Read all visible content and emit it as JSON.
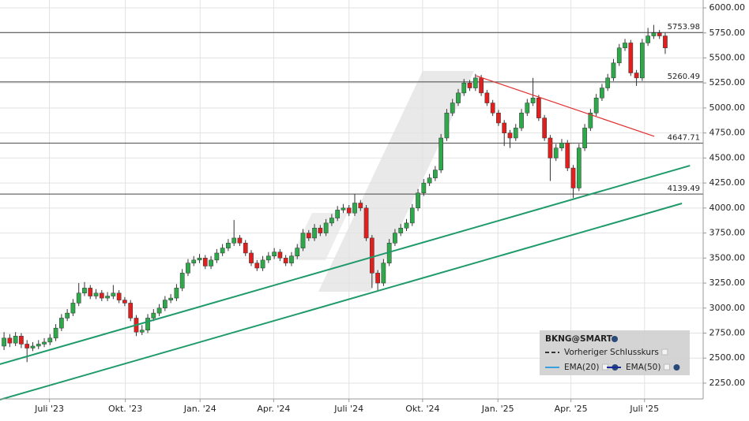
{
  "chart_data": {
    "type": "candlestick",
    "ylim": [
      2092,
      6079
    ],
    "yticks": [
      {
        "value": 2250,
        "label": "2250.00"
      },
      {
        "value": 2500,
        "label": "2500.00"
      },
      {
        "value": 2750,
        "label": "2750.00"
      },
      {
        "value": 3000,
        "label": "3000.00"
      },
      {
        "value": 3250,
        "label": "3250.00"
      },
      {
        "value": 3500,
        "label": "3500.00"
      },
      {
        "value": 3750,
        "label": "3750.00"
      },
      {
        "value": 4000,
        "label": "4000.00"
      },
      {
        "value": 4250,
        "label": "4250.00"
      },
      {
        "value": 4500,
        "label": "4500.00"
      },
      {
        "value": 4750,
        "label": "4750.00"
      },
      {
        "value": 5000,
        "label": "5000.00"
      },
      {
        "value": 5250,
        "label": "5250.00"
      },
      {
        "value": 5500,
        "label": "5500.00"
      },
      {
        "value": 5750,
        "label": "5750.00"
      },
      {
        "value": 6000,
        "label": "6000.00"
      }
    ],
    "xlim": [
      -0.7,
      121.6
    ],
    "xticks": [
      {
        "value": 7.9,
        "label": "Juli '23"
      },
      {
        "value": 21.1,
        "label": "Okt. '23"
      },
      {
        "value": 34.1,
        "label": "Jan. '24"
      },
      {
        "value": 46.9,
        "label": "Apr. '24"
      },
      {
        "value": 60,
        "label": "Juli '24"
      },
      {
        "value": 72.8,
        "label": "Okt. '24"
      },
      {
        "value": 85.9,
        "label": "Jan. '25"
      },
      {
        "value": 98.6,
        "label": "Apr. '25"
      },
      {
        "value": 111.4,
        "label": "Juli '25"
      }
    ],
    "grid": true,
    "up_color": "#2ea84a",
    "down_color": "#e0201e",
    "candles": [
      [
        2620,
        2760,
        2580,
        2700
      ],
      [
        2700,
        2740,
        2610,
        2650
      ],
      [
        2650,
        2760,
        2620,
        2720
      ],
      [
        2720,
        2750,
        2600,
        2640
      ],
      [
        2640,
        2680,
        2460,
        2600
      ],
      [
        2600,
        2660,
        2570,
        2620
      ],
      [
        2620,
        2680,
        2590,
        2640
      ],
      [
        2640,
        2700,
        2610,
        2660
      ],
      [
        2660,
        2740,
        2630,
        2700
      ],
      [
        2700,
        2840,
        2670,
        2800
      ],
      [
        2800,
        2940,
        2770,
        2900
      ],
      [
        2900,
        2990,
        2870,
        2950
      ],
      [
        2950,
        3090,
        2920,
        3050
      ],
      [
        3050,
        3250,
        3020,
        3150
      ],
      [
        3150,
        3260,
        3120,
        3200
      ],
      [
        3200,
        3230,
        3090,
        3120
      ],
      [
        3120,
        3190,
        3090,
        3150
      ],
      [
        3150,
        3180,
        3070,
        3100
      ],
      [
        3100,
        3160,
        3070,
        3120
      ],
      [
        3120,
        3230,
        3090,
        3150
      ],
      [
        3150,
        3180,
        3050,
        3080
      ],
      [
        3080,
        3110,
        3020,
        3050
      ],
      [
        3050,
        3080,
        2870,
        2900
      ],
      [
        2900,
        2930,
        2720,
        2760
      ],
      [
        2760,
        2830,
        2730,
        2780
      ],
      [
        2780,
        2940,
        2750,
        2900
      ],
      [
        2900,
        2990,
        2870,
        2950
      ],
      [
        2950,
        3040,
        2920,
        3000
      ],
      [
        3000,
        3120,
        2970,
        3080
      ],
      [
        3080,
        3140,
        3050,
        3100
      ],
      [
        3100,
        3240,
        3070,
        3200
      ],
      [
        3200,
        3390,
        3170,
        3350
      ],
      [
        3350,
        3490,
        3320,
        3450
      ],
      [
        3450,
        3520,
        3420,
        3480
      ],
      [
        3480,
        3540,
        3450,
        3500
      ],
      [
        3500,
        3530,
        3390,
        3420
      ],
      [
        3420,
        3520,
        3390,
        3480
      ],
      [
        3480,
        3590,
        3450,
        3550
      ],
      [
        3550,
        3640,
        3520,
        3600
      ],
      [
        3600,
        3690,
        3570,
        3650
      ],
      [
        3650,
        3880,
        3620,
        3700
      ],
      [
        3700,
        3730,
        3620,
        3650
      ],
      [
        3650,
        3680,
        3520,
        3550
      ],
      [
        3550,
        3580,
        3420,
        3450
      ],
      [
        3450,
        3480,
        3370,
        3400
      ],
      [
        3400,
        3520,
        3370,
        3480
      ],
      [
        3480,
        3560,
        3450,
        3520
      ],
      [
        3520,
        3600,
        3490,
        3560
      ],
      [
        3560,
        3590,
        3470,
        3500
      ],
      [
        3500,
        3530,
        3420,
        3450
      ],
      [
        3450,
        3560,
        3420,
        3520
      ],
      [
        3520,
        3640,
        3490,
        3600
      ],
      [
        3600,
        3790,
        3570,
        3750
      ],
      [
        3750,
        3780,
        3670,
        3700
      ],
      [
        3700,
        3840,
        3670,
        3800
      ],
      [
        3800,
        3830,
        3720,
        3750
      ],
      [
        3750,
        3890,
        3720,
        3850
      ],
      [
        3850,
        3940,
        3820,
        3900
      ],
      [
        3900,
        4020,
        3870,
        3980
      ],
      [
        3980,
        4040,
        3950,
        4000
      ],
      [
        4000,
        4030,
        3920,
        3950
      ],
      [
        3950,
        4140,
        3920,
        4050
      ],
      [
        4050,
        4080,
        3970,
        4000
      ],
      [
        4000,
        4030,
        3670,
        3700
      ],
      [
        3700,
        3730,
        3200,
        3350
      ],
      [
        3350,
        3380,
        3180,
        3250
      ],
      [
        3250,
        3490,
        3220,
        3450
      ],
      [
        3450,
        3690,
        3420,
        3650
      ],
      [
        3650,
        3790,
        3620,
        3750
      ],
      [
        3750,
        3840,
        3720,
        3800
      ],
      [
        3800,
        3890,
        3770,
        3850
      ],
      [
        3850,
        4040,
        3820,
        4000
      ],
      [
        4000,
        4190,
        3970,
        4150
      ],
      [
        4150,
        4290,
        4120,
        4250
      ],
      [
        4250,
        4340,
        4220,
        4300
      ],
      [
        4300,
        4420,
        4270,
        4380
      ],
      [
        4380,
        4740,
        4350,
        4700
      ],
      [
        4700,
        4990,
        4670,
        4950
      ],
      [
        4950,
        5090,
        4920,
        5050
      ],
      [
        5050,
        5190,
        5020,
        5150
      ],
      [
        5150,
        5290,
        5120,
        5250
      ],
      [
        5250,
        5280,
        5170,
        5200
      ],
      [
        5200,
        5340,
        5170,
        5300
      ],
      [
        5300,
        5330,
        5120,
        5150
      ],
      [
        5150,
        5180,
        5020,
        5050
      ],
      [
        5050,
        5080,
        4920,
        4950
      ],
      [
        4950,
        4980,
        4820,
        4850
      ],
      [
        4850,
        4880,
        4620,
        4750
      ],
      [
        4750,
        4780,
        4600,
        4700
      ],
      [
        4700,
        4840,
        4670,
        4800
      ],
      [
        4800,
        4990,
        4770,
        4950
      ],
      [
        4950,
        5090,
        4920,
        5050
      ],
      [
        5050,
        5300,
        5020,
        5100
      ],
      [
        5100,
        5130,
        4870,
        4900
      ],
      [
        4900,
        4930,
        4670,
        4700
      ],
      [
        4700,
        4730,
        4270,
        4500
      ],
      [
        4500,
        4640,
        4470,
        4600
      ],
      [
        4600,
        4690,
        4570,
        4650
      ],
      [
        4650,
        4680,
        4370,
        4400
      ],
      [
        4400,
        4430,
        4100,
        4200
      ],
      [
        4200,
        4640,
        4170,
        4600
      ],
      [
        4600,
        4840,
        4570,
        4800
      ],
      [
        4800,
        4990,
        4770,
        4950
      ],
      [
        4950,
        5140,
        4920,
        5100
      ],
      [
        5100,
        5240,
        5070,
        5200
      ],
      [
        5200,
        5340,
        5170,
        5300
      ],
      [
        5300,
        5490,
        5270,
        5450
      ],
      [
        5450,
        5640,
        5420,
        5600
      ],
      [
        5600,
        5690,
        5570,
        5650
      ],
      [
        5650,
        5680,
        5320,
        5350
      ],
      [
        5350,
        5380,
        5220,
        5300
      ],
      [
        5300,
        5690,
        5270,
        5650
      ],
      [
        5650,
        5800,
        5620,
        5720
      ],
      [
        5720,
        5830,
        5690,
        5750
      ],
      [
        5750,
        5780,
        5690,
        5720
      ],
      [
        5720,
        5750,
        5540,
        5600
      ]
    ],
    "levels": [
      5753.98,
      5260.49,
      4647.71,
      4139.49
    ],
    "trendlines": [
      {
        "color": "#1f9a6a",
        "x": [
          -0.7,
          119.3
        ],
        "values": [
          2439,
          4424
        ]
      },
      {
        "color": "#1f9a6a",
        "x": [
          -0.7,
          117.9
        ],
        "values": [
          2085,
          4046
        ]
      },
      {
        "color": "#e03030",
        "x": [
          82.1,
          113.1
        ],
        "values": [
          5322,
          4716
        ]
      }
    ],
    "legend": {
      "title": "BKNG@SMART",
      "items": [
        {
          "name": "Vorheriger Schlusskurs",
          "color": "#333333",
          "dash": true
        },
        {
          "name": "EMA(20)",
          "color": "#3aa0e0",
          "dash": false
        },
        {
          "name": "EMA(50)",
          "color": "#1a2a9a",
          "dash": false
        }
      ]
    }
  }
}
